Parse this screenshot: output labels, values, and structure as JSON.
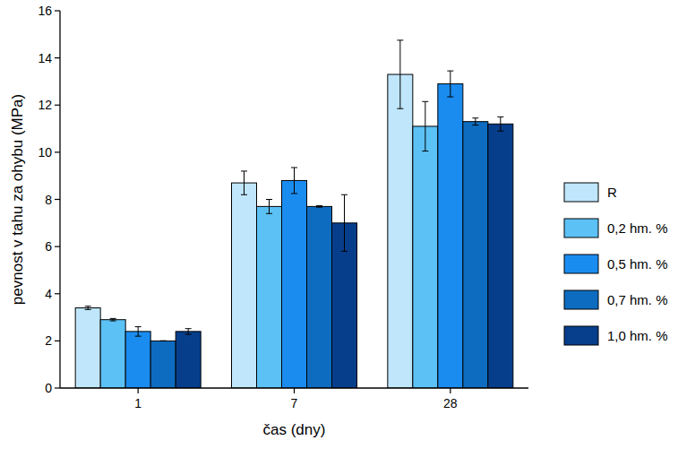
{
  "chart_data": {
    "type": "bar",
    "x_label": "čas (dny)",
    "y_label": "pevnost v tahu za ohybu (MPa)",
    "categories": [
      "1",
      "7",
      "28"
    ],
    "series": [
      {
        "name": "R",
        "color": "#bfe6fb",
        "values": [
          3.4,
          8.7,
          13.3
        ],
        "errors": [
          0.07,
          0.5,
          1.45
        ]
      },
      {
        "name": "0,2 hm. %",
        "color": "#5cc1f5",
        "values": [
          2.9,
          7.7,
          11.1
        ],
        "errors": [
          0.05,
          0.3,
          1.05
        ]
      },
      {
        "name": "0,5 hm. %",
        "color": "#1a8cf0",
        "values": [
          2.4,
          8.8,
          12.9
        ],
        "errors": [
          0.2,
          0.55,
          0.55
        ]
      },
      {
        "name": "0,7 hm. %",
        "color": "#0d6cbf",
        "values": [
          2.0,
          7.7,
          11.3
        ],
        "errors": [
          0.0,
          0.03,
          0.15
        ]
      },
      {
        "name": "1,0 hm. %",
        "color": "#073e8c",
        "values": [
          2.4,
          7.0,
          11.2
        ],
        "errors": [
          0.12,
          1.2,
          0.3
        ]
      }
    ],
    "ylim": [
      0,
      16
    ],
    "yticks": [
      0,
      2,
      4,
      6,
      8,
      10,
      12,
      14,
      16
    ],
    "grid": false,
    "legend": "right"
  }
}
